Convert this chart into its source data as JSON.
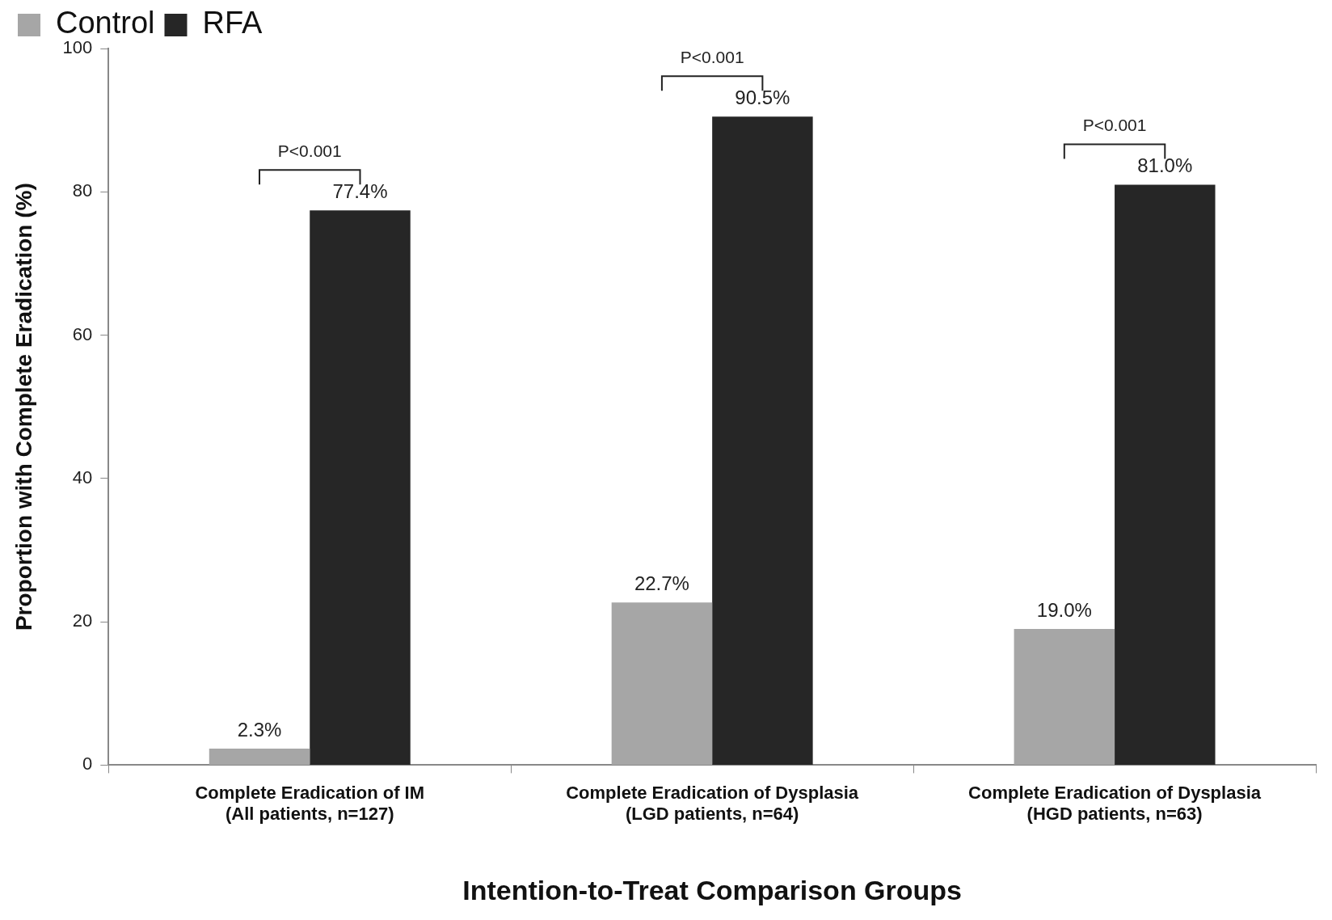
{
  "chart_data": {
    "type": "bar",
    "xlabel": "Intention-to-Treat Comparison Groups",
    "ylabel": "Proportion with Complete Eradication (%)",
    "categories": [
      "Complete Eradication of IM\n(All patients, n=127)",
      "Complete Eradication of Dysplasia\n(LGD patients, n=64)",
      "Complete Eradication of Dysplasia\n(HGD patients, n=63)"
    ],
    "series": [
      {
        "name": "Control",
        "color": "#a6a6a6",
        "values": [
          2.3,
          22.7,
          19.0
        ],
        "value_labels": [
          "2.3%",
          "22.7%",
          "19.0%"
        ]
      },
      {
        "name": "RFA",
        "color": "#262626",
        "values": [
          77.4,
          90.5,
          81.0
        ],
        "value_labels": [
          "77.4%",
          "90.5%",
          "81.0%"
        ]
      }
    ],
    "ylim": [
      0,
      100
    ],
    "yticks": [
      0,
      20,
      40,
      60,
      80,
      100
    ],
    "grid": false,
    "legend": "top left",
    "annotations": [
      "P<0.001",
      "P<0.001",
      "P<0.001"
    ]
  }
}
